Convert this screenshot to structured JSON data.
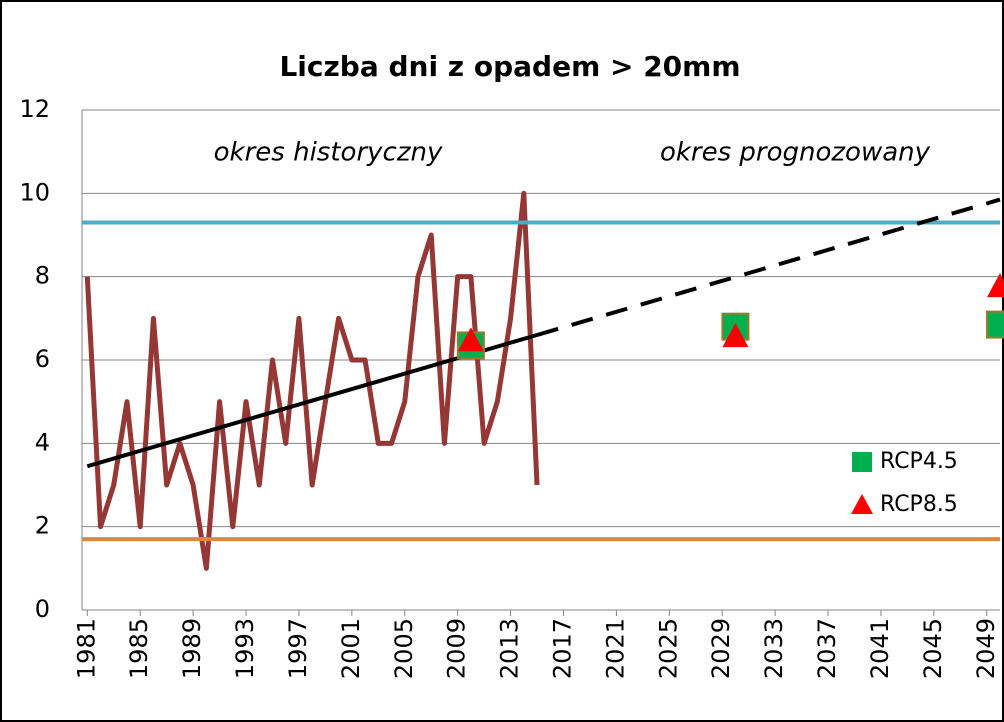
{
  "chart_data": {
    "type": "line",
    "title": "Liczba dni z opadem > 20mm",
    "annotations": [
      "okres historyczny",
      "okres prognozowany"
    ],
    "xlim": [
      1980.6,
      2050
    ],
    "xticks": [
      1981,
      1985,
      1989,
      1993,
      1997,
      2001,
      2005,
      2009,
      2013,
      2017,
      2021,
      2025,
      2029,
      2033,
      2037,
      2041,
      2045,
      2049
    ],
    "ylim": [
      0,
      12
    ],
    "yticks": [
      0,
      2,
      4,
      6,
      8,
      10,
      12
    ],
    "grid": true,
    "legend": "lower right",
    "lines": [
      {
        "color": "#953735",
        "width": 5,
        "dash": false,
        "x": [
          1981,
          1982,
          1983,
          1984,
          1985,
          1986,
          1987,
          1988,
          1989,
          1990,
          1991,
          1992,
          1993,
          1994,
          1995,
          1996,
          1997,
          1998,
          1999,
          2000,
          2001,
          2002,
          2003,
          2004,
          2005,
          2006,
          2007,
          2008,
          2009,
          2010,
          2011,
          2012,
          2013,
          2014,
          2015
        ],
        "values": [
          8,
          2,
          3,
          5,
          2,
          7,
          3,
          4,
          3,
          1,
          5,
          2,
          5,
          3,
          6,
          4,
          7,
          3,
          5,
          7,
          6,
          6,
          4,
          4,
          5,
          8,
          9,
          4,
          8,
          8,
          4,
          5,
          7,
          10,
          3
        ]
      },
      {
        "color": "#4bacc6",
        "width": 4,
        "dash": false,
        "x": [
          1980.6,
          2050
        ],
        "values": [
          9.3,
          9.3
        ]
      },
      {
        "color": "#e0883a",
        "width": 4,
        "dash": false,
        "x": [
          1980.6,
          2050
        ],
        "values": [
          1.7,
          1.7
        ]
      },
      {
        "color": "#000000",
        "width": 4,
        "dash": false,
        "x": [
          1981,
          2015
        ],
        "values": [
          3.45,
          6.6
        ]
      },
      {
        "color": "#000000",
        "width": 4,
        "dash": true,
        "x": [
          2015,
          2050
        ],
        "values": [
          6.6,
          9.85
        ]
      }
    ],
    "series": [
      {
        "name": "RCP4.5",
        "color": "#00b050",
        "marker": "square",
        "x": [
          2010,
          2030,
          2050
        ],
        "values": [
          6.35,
          6.8,
          6.85
        ]
      },
      {
        "name": "RCP8.5",
        "color": "#ff0000",
        "marker": "triangle",
        "x": [
          2010,
          2030,
          2050
        ],
        "values": [
          6.45,
          6.55,
          7.75
        ]
      }
    ]
  }
}
